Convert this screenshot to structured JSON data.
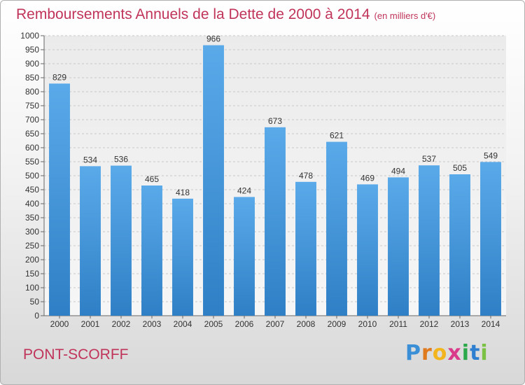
{
  "header": {
    "title": "Remboursements Annuels de la Dette de 2000 à 2014",
    "subtitle": "(en milliers d'€)"
  },
  "footer": {
    "commune": "PONT-SCORFF",
    "brand_letters": [
      "P",
      "r",
      "o",
      "x",
      "i",
      "t",
      "i"
    ],
    "brand_colors": [
      "#3a8fd6",
      "#e07a1f",
      "#f2b51d",
      "#d93a8a",
      "#2aa84a",
      "#2f7fd1",
      "#7bc143"
    ]
  },
  "chart_data": {
    "type": "bar",
    "title": "Remboursements Annuels de la Dette de 2000 à 2014",
    "subtitle": "(en milliers d'€)",
    "xlabel": "",
    "ylabel": "",
    "categories": [
      "2000",
      "2001",
      "2002",
      "2003",
      "2004",
      "2005",
      "2006",
      "2007",
      "2008",
      "2009",
      "2010",
      "2011",
      "2012",
      "2013",
      "2014"
    ],
    "values": [
      829,
      534,
      536,
      465,
      418,
      966,
      424,
      673,
      478,
      621,
      469,
      494,
      537,
      505,
      549
    ],
    "ylim": [
      0,
      1000
    ],
    "yticks": [
      0,
      50,
      100,
      150,
      200,
      250,
      300,
      350,
      400,
      450,
      500,
      550,
      600,
      650,
      700,
      750,
      800,
      850,
      900,
      950,
      1000
    ],
    "grid": true,
    "legend": "none",
    "bar_color": "#4a9de0"
  }
}
